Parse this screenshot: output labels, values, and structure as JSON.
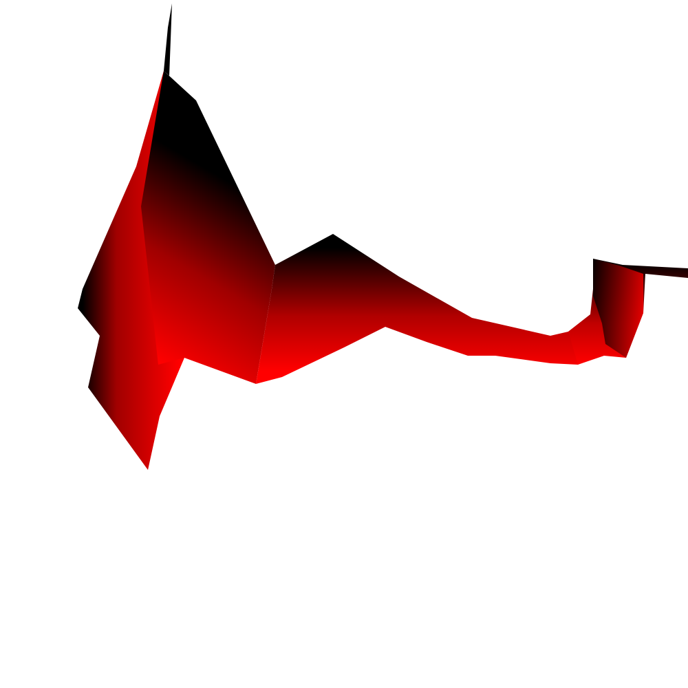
{
  "scene": {
    "background": "#ffffff",
    "subject": "red-ribbon-surface",
    "colors": {
      "highlight": "#ff0000",
      "mid": "#b00000",
      "shadow": "#000000"
    }
  }
}
